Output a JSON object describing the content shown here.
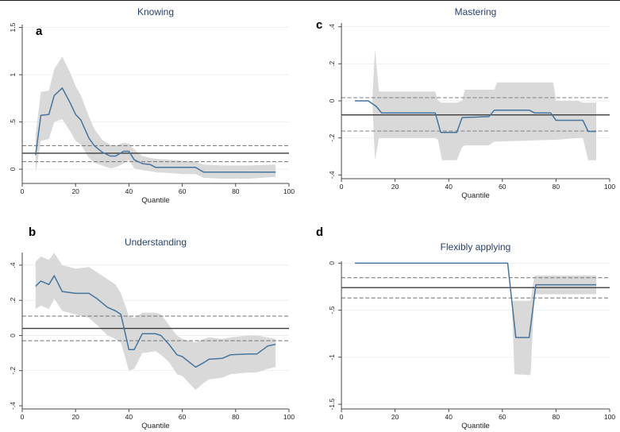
{
  "colors": {
    "series": "#46749c",
    "band": "#d9d9d9",
    "ols_line": "#3c3c3c",
    "ols_ci": "#7f7f7f",
    "grid": "#e8eef2",
    "axis": "#4a4a4a",
    "title": "#27406b",
    "panel_letter": "#000000",
    "tick_label": "#222222",
    "background": "#ffffff"
  },
  "chart_data": {
    "type": "line",
    "layout": "2x2 quantile regression panels with OLS reference lines and 95% CI bands",
    "panels": [
      {
        "letter": "a",
        "title": "Knowing",
        "xlabel": "Quantile",
        "xlim": [
          0,
          100
        ],
        "xticks": [
          0,
          20,
          40,
          60,
          80,
          100
        ],
        "ylim": [
          -0.15,
          1.53
        ],
        "yticks": [
          0,
          0.5,
          1,
          1.5
        ],
        "ytick_labels": [
          "0",
          ".5",
          "1",
          "1.5"
        ],
        "ols_estimate": 0.17,
        "ols_ci": [
          0.08,
          0.25
        ],
        "x": [
          5,
          7,
          10,
          12,
          15,
          18,
          20,
          22,
          25,
          27,
          30,
          33,
          35,
          38,
          40,
          42,
          45,
          48,
          50,
          55,
          60,
          65,
          68,
          75,
          85,
          95
        ],
        "y": [
          0.15,
          0.57,
          0.58,
          0.78,
          0.86,
          0.7,
          0.58,
          0.52,
          0.33,
          0.25,
          0.18,
          0.14,
          0.14,
          0.19,
          0.19,
          0.1,
          0.06,
          0.05,
          0.02,
          0.02,
          0.02,
          0.02,
          -0.03,
          -0.03,
          -0.03,
          -0.03
        ],
        "band": {
          "x": [
            5,
            7,
            10,
            12,
            15,
            18,
            20,
            22,
            25,
            27,
            30,
            33,
            35,
            38,
            40,
            42,
            45,
            48,
            50,
            55,
            60,
            65,
            68,
            75,
            85,
            95
          ],
          "upper": [
            0.36,
            0.82,
            0.83,
            1.06,
            1.19,
            1.02,
            0.88,
            0.78,
            0.56,
            0.43,
            0.31,
            0.26,
            0.25,
            0.28,
            0.27,
            0.21,
            0.14,
            0.12,
            0.11,
            0.1,
            0.09,
            0.08,
            0.05,
            0.04,
            0.04,
            0.05
          ],
          "lower": [
            -0.04,
            0.3,
            0.32,
            0.5,
            0.53,
            0.4,
            0.3,
            0.26,
            0.12,
            0.07,
            0.04,
            0.01,
            0.02,
            0.06,
            0.1,
            0.01,
            -0.01,
            -0.02,
            -0.03,
            -0.04,
            -0.05,
            -0.05,
            -0.09,
            -0.1,
            -0.1,
            -0.08
          ]
        }
      },
      {
        "letter": "c",
        "title": "Mastering",
        "xlabel": "Quantile",
        "xlim": [
          0,
          100
        ],
        "xticks": [
          0,
          20,
          40,
          60,
          80,
          100
        ],
        "ylim": [
          -0.42,
          0.42
        ],
        "yticks": [
          -0.4,
          -0.2,
          0,
          0.2,
          0.4
        ],
        "ytick_labels": [
          "-.4",
          "-.2",
          "0",
          ".2",
          ".4"
        ],
        "ols_estimate": -0.076,
        "ols_ci": [
          -0.163,
          0.017
        ],
        "x": [
          5,
          10,
          13,
          15,
          35,
          37,
          43,
          45,
          50,
          55,
          57,
          70,
          72,
          78,
          80,
          90,
          92,
          95
        ],
        "y": [
          0.0,
          0.0,
          -0.03,
          -0.065,
          -0.065,
          -0.17,
          -0.17,
          -0.09,
          -0.088,
          -0.085,
          -0.05,
          -0.05,
          -0.065,
          -0.065,
          -0.105,
          -0.105,
          -0.165,
          -0.165
        ],
        "band": {
          "x": [
            11.5,
            12.5,
            14,
            35,
            36,
            37.5,
            43,
            45,
            46,
            55,
            57,
            58,
            79,
            80,
            88,
            90,
            92,
            95
          ],
          "upper": [
            0.0,
            0.28,
            0.05,
            0.05,
            0.0,
            -0.01,
            -0.01,
            0.0,
            0.06,
            0.06,
            0.06,
            0.1,
            0.1,
            0.0,
            0.0,
            -0.01,
            -0.01,
            -0.01
          ],
          "lower": [
            0.0,
            -0.32,
            -0.2,
            -0.2,
            -0.21,
            -0.32,
            -0.32,
            -0.25,
            -0.24,
            -0.24,
            -0.22,
            -0.22,
            -0.21,
            -0.21,
            -0.2,
            -0.2,
            -0.32,
            -0.32
          ]
        }
      },
      {
        "letter": "b",
        "title": "Understanding",
        "xlabel": "Quantile",
        "xlim": [
          0,
          100
        ],
        "xticks": [
          0,
          20,
          40,
          60,
          80,
          100
        ],
        "ylim": [
          -0.418,
          0.472
        ],
        "yticks": [
          -0.4,
          -0.2,
          0,
          0.2,
          0.4
        ],
        "ytick_labels": [
          "-.4",
          "-.2",
          "0",
          ".2",
          ".4"
        ],
        "ols_estimate": 0.04,
        "ols_ci": [
          -0.03,
          0.11
        ],
        "x": [
          5,
          7,
          10,
          12,
          15,
          20,
          25,
          28,
          32,
          35,
          37,
          40,
          42,
          45,
          50,
          52,
          55,
          58,
          60,
          65,
          68,
          70,
          75,
          78,
          85,
          88,
          92,
          95
        ],
        "y": [
          0.28,
          0.31,
          0.29,
          0.34,
          0.25,
          0.24,
          0.24,
          0.21,
          0.16,
          0.14,
          0.12,
          -0.08,
          -0.08,
          0.01,
          0.01,
          0.0,
          -0.05,
          -0.11,
          -0.12,
          -0.18,
          -0.155,
          -0.135,
          -0.13,
          -0.11,
          -0.105,
          -0.105,
          -0.06,
          -0.05
        ],
        "band": {
          "x": [
            5,
            7,
            10,
            12,
            15,
            20,
            25,
            28,
            32,
            35,
            37,
            40,
            42,
            45,
            50,
            52,
            55,
            58,
            60,
            65,
            68,
            70,
            75,
            78,
            85,
            88,
            92,
            95
          ],
          "upper": [
            0.42,
            0.45,
            0.43,
            0.47,
            0.4,
            0.38,
            0.39,
            0.36,
            0.32,
            0.29,
            0.24,
            0.11,
            0.1,
            0.13,
            0.13,
            0.12,
            0.06,
            0.0,
            -0.02,
            -0.04,
            -0.02,
            -0.01,
            -0.02,
            -0.01,
            0.0,
            0.0,
            -0.01,
            -0.02
          ],
          "lower": [
            0.15,
            0.17,
            0.15,
            0.21,
            0.14,
            0.12,
            0.1,
            0.06,
            0.0,
            -0.02,
            -0.04,
            -0.2,
            -0.19,
            -0.1,
            -0.09,
            -0.11,
            -0.15,
            -0.22,
            -0.23,
            -0.31,
            -0.27,
            -0.25,
            -0.24,
            -0.22,
            -0.21,
            -0.21,
            -0.19,
            -0.18
          ]
        }
      },
      {
        "letter": "d",
        "title": "Flexibly applying",
        "xlabel": "Quantile",
        "xlim": [
          0,
          100
        ],
        "xticks": [
          0,
          20,
          40,
          60,
          80,
          100
        ],
        "ylim": [
          -1.55,
          0.02
        ],
        "yticks": [
          0,
          -0.5,
          -1,
          -1.5
        ],
        "ytick_labels": [
          "0",
          "-.5",
          "-1",
          "-1.5"
        ],
        "ols_estimate": -0.26,
        "ols_ci": [
          -0.37,
          -0.155
        ],
        "x": [
          5,
          62,
          65,
          70,
          72.5,
          95
        ],
        "y": [
          0.0,
          0.0,
          -0.79,
          -0.79,
          -0.23,
          -0.23
        ],
        "band": {
          "x": [
            63.5,
            64.5,
            70.5,
            72,
            95
          ],
          "upper": [
            -0.4,
            -0.4,
            -0.4,
            -0.13,
            -0.13
          ],
          "lower": [
            -0.42,
            -1.18,
            -1.19,
            -0.33,
            -0.33
          ]
        }
      }
    ]
  }
}
